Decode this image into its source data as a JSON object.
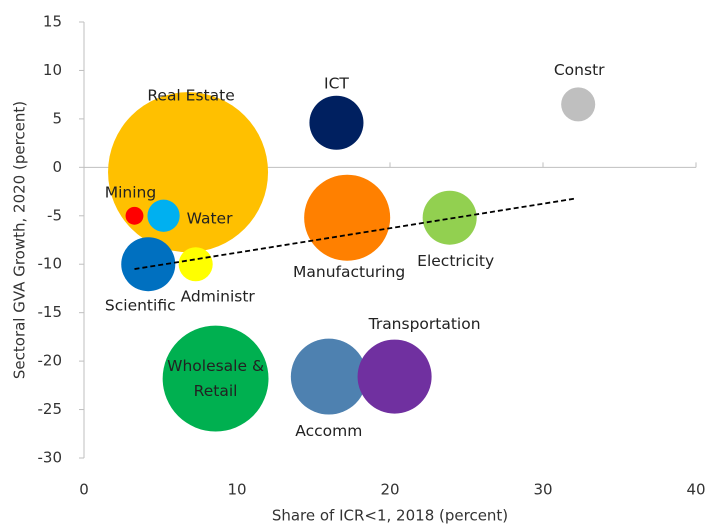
{
  "chart_data": {
    "type": "bubble",
    "xlabel": "Share of ICR<1, 2018 (percent)",
    "ylabel": "Sectoral GVA Growth, 2020 (percent)",
    "xlim": [
      0,
      40
    ],
    "ylim": [
      -30,
      15
    ],
    "xticks": [
      0,
      10,
      20,
      30,
      40
    ],
    "yticks": [
      -30,
      -25,
      -20,
      -15,
      -10,
      -5,
      0,
      5,
      10,
      15
    ],
    "labels": [
      "Real Estate",
      "ICT",
      "Constr",
      "Mining",
      "Water",
      "Manufacturing",
      "Electricity",
      "Scientific",
      "Administr",
      "Wholesale & Retail",
      "Accomm",
      "Transportation"
    ],
    "x": [
      6.8,
      16.5,
      32.3,
      3.3,
      5.2,
      17.2,
      23.9,
      4.2,
      7.3,
      8.6,
      16.0,
      20.3
    ],
    "y": [
      -0.5,
      4.6,
      6.5,
      -5.0,
      -5.0,
      -5.2,
      -5.2,
      -10.0,
      -10.0,
      -21.8,
      -21.6,
      -21.6
    ],
    "sizes": [
      64,
      7.3,
      2.9,
      0.8,
      2.6,
      18.5,
      7.3,
      7.3,
      2.9,
      28,
      14.4,
      13.7
    ],
    "colors": [
      "#FFC000",
      "#002060",
      "#BFBFBF",
      "#FF0000",
      "#00B0F0",
      "#FF8000",
      "#92D050",
      "#0070C0",
      "#FFFF00",
      "#00B050",
      "#4E81B0",
      "#7030A0"
    ],
    "trendline": {
      "x": [
        3.3,
        32.2
      ],
      "y": [
        -10.5,
        -3.2
      ]
    }
  }
}
